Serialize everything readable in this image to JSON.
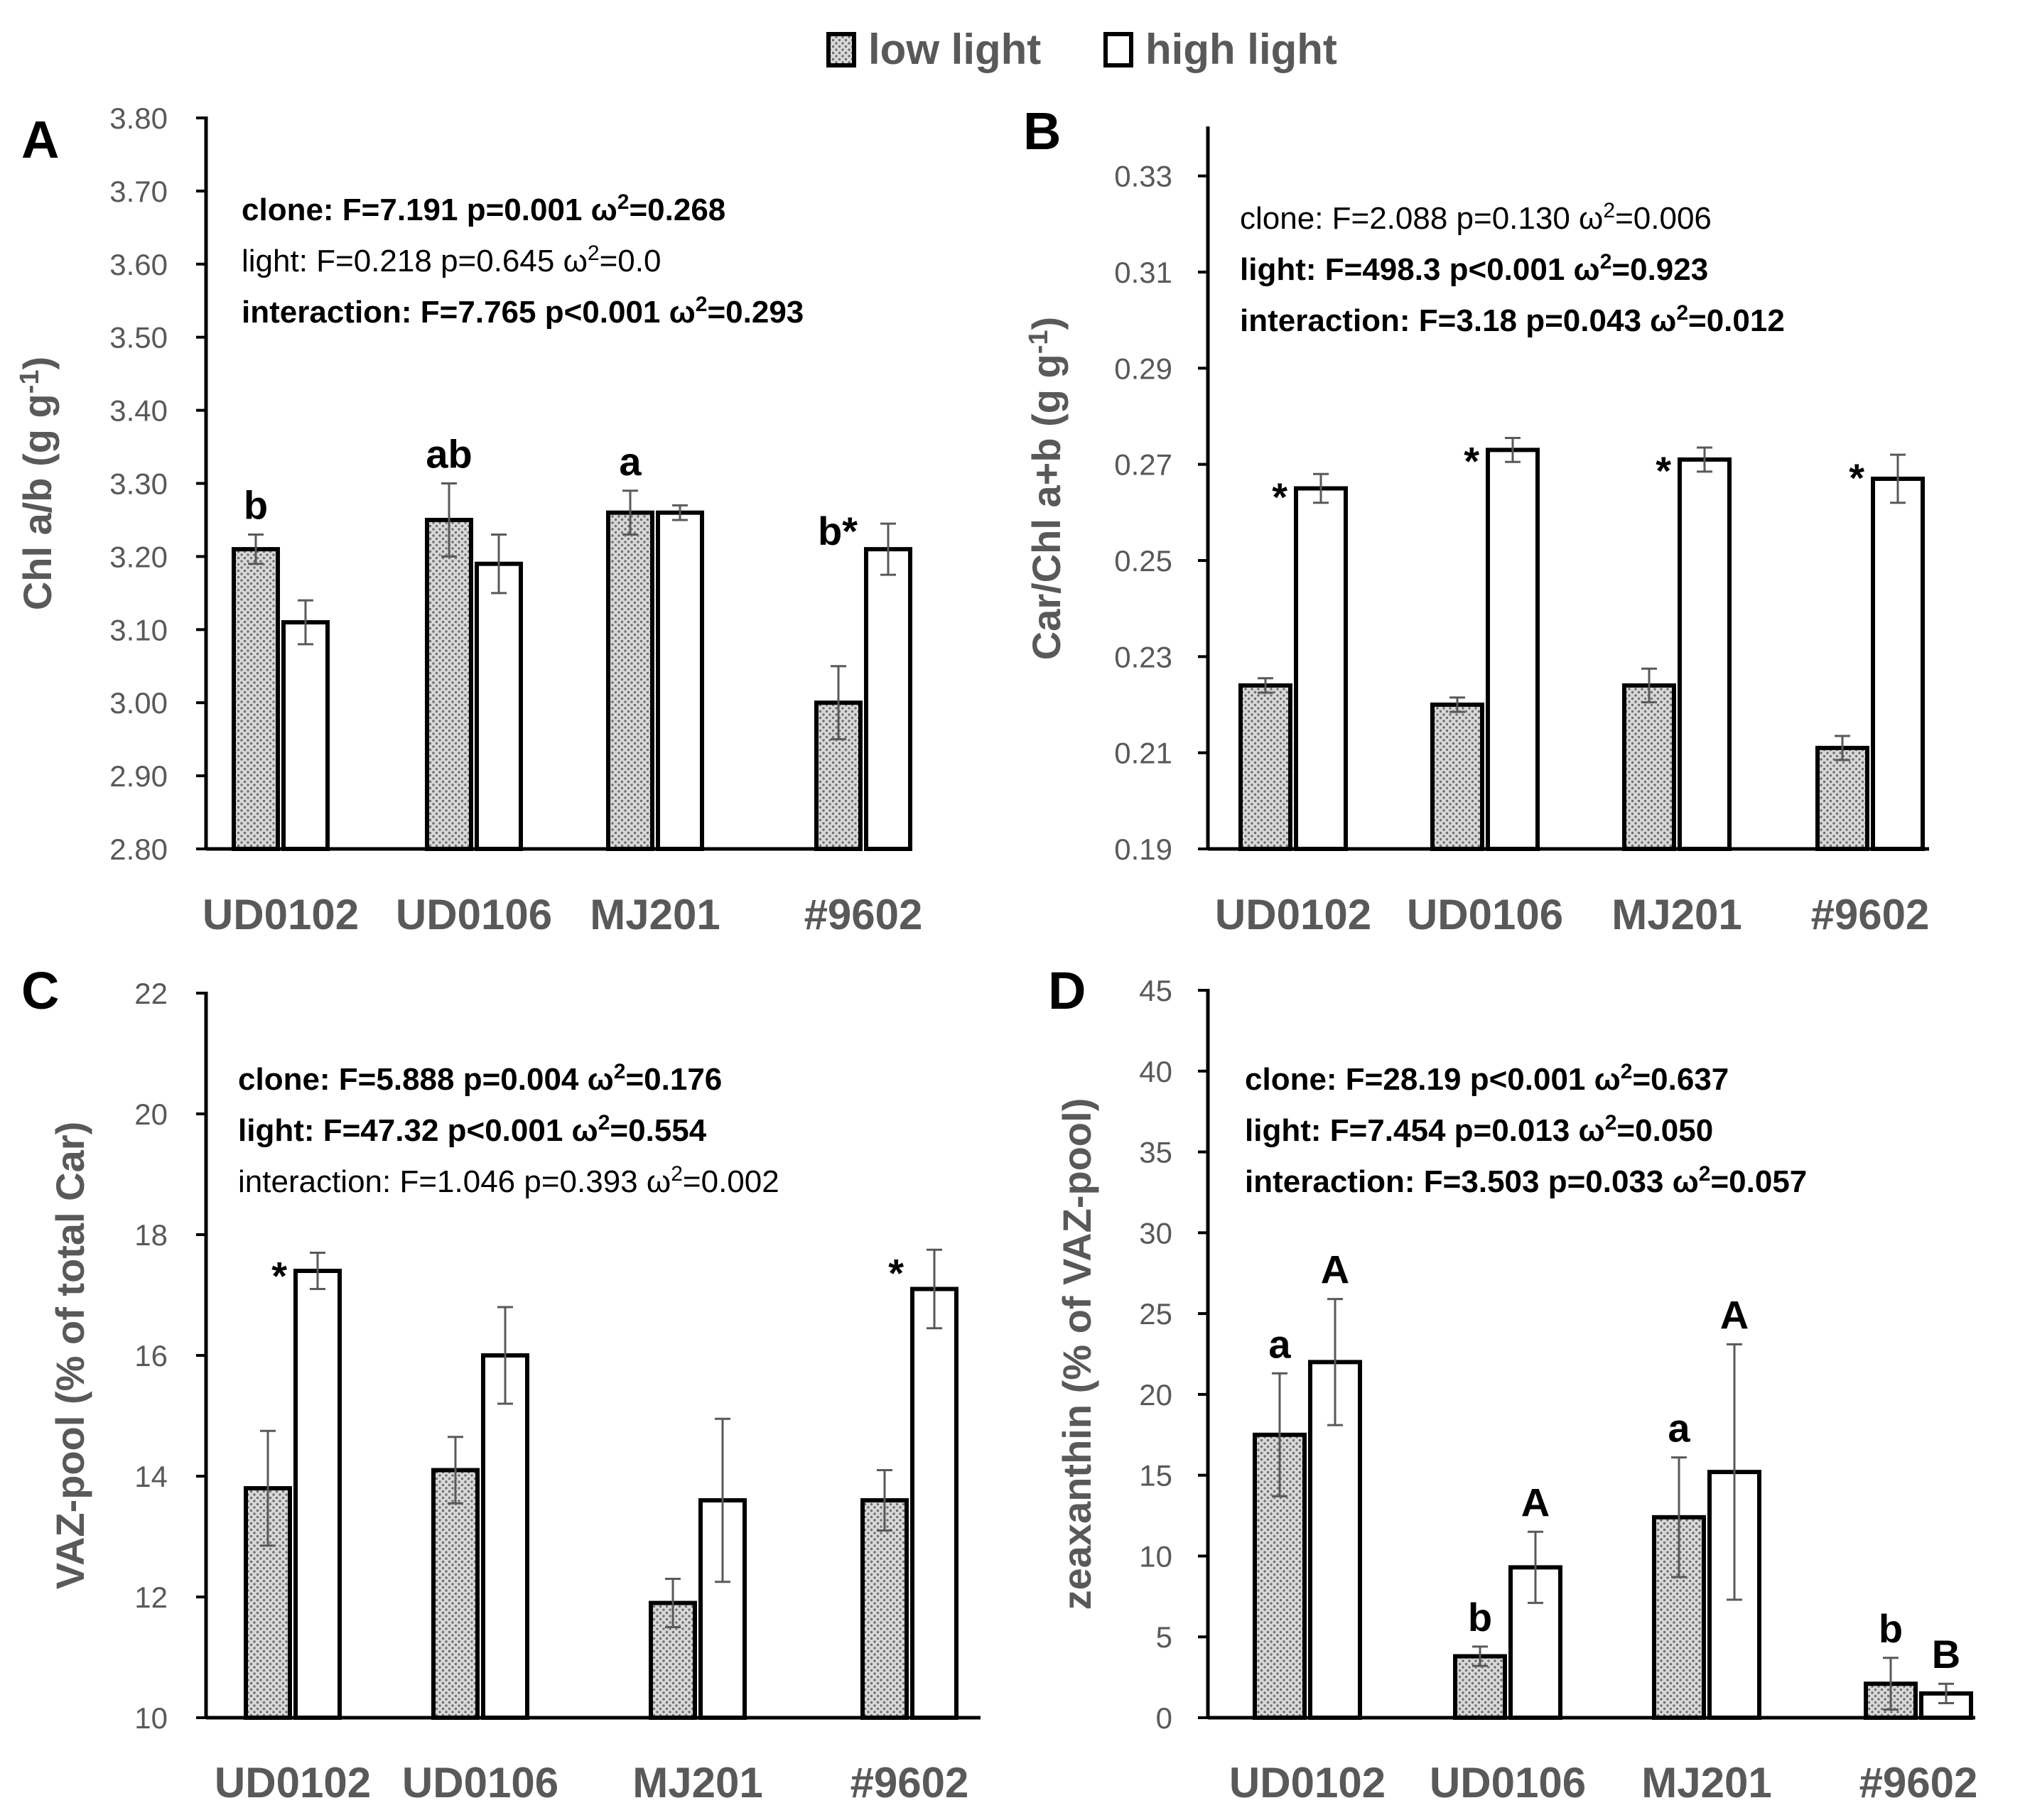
{
  "legend": {
    "low": "low light",
    "high": "high light"
  },
  "colors": {
    "axis": "#000000",
    "text": "#595959",
    "error": "#595959",
    "bar_edge": "#000000"
  },
  "chart_data": [
    {
      "panel": "A",
      "type": "bar",
      "ylabel": "Chl a/b (g g-1)",
      "ylabel_main": "Chl a/b (g g",
      "ylabel_sup": "-1",
      "ylabel_end": ")",
      "ylim": [
        2.8,
        3.8
      ],
      "ytick_step": 0.1,
      "ytick_decimals": 2,
      "categories": [
        "UD0102",
        "UD0106",
        "MJ201",
        "#9602"
      ],
      "series": [
        {
          "name": "low light",
          "values": [
            3.21,
            3.25,
            3.26,
            3.0
          ],
          "errors": [
            0.02,
            0.05,
            0.03,
            0.05
          ]
        },
        {
          "name": "high light",
          "values": [
            3.11,
            3.19,
            3.26,
            3.21
          ],
          "errors": [
            0.03,
            0.04,
            0.01,
            0.035
          ]
        }
      ],
      "annotations": [
        {
          "text": "b",
          "cat": 0,
          "series": 0
        },
        {
          "text": "ab",
          "cat": 1,
          "series": 0
        },
        {
          "text": "a",
          "cat": 2,
          "series": 0
        },
        {
          "text": "b*",
          "cat": 3,
          "series": 1,
          "side": "left"
        }
      ],
      "stats": [
        {
          "bold": true,
          "label": "clone:",
          "text": "F=7.191 p=0.001 ω",
          "sup": "2",
          "tail": "=0.268"
        },
        {
          "bold": false,
          "label": "light:",
          "text": "F=0.218 p=0.645 ω",
          "sup": "2",
          "tail": "=0.0"
        },
        {
          "bold": true,
          "label": "interaction:",
          "text": "F=7.765 p<0.001 ω",
          "sup": "2",
          "tail": "=0.293"
        }
      ]
    },
    {
      "panel": "B",
      "type": "bar",
      "ylabel": "Car/Chl a+b (g g-1)",
      "ylabel_main": "Car/Chl a+b (g g",
      "ylabel_sup": "-1",
      "ylabel_end": ")",
      "ylim": [
        0.19,
        0.34
      ],
      "ytick_values": [
        0.19,
        0.21,
        0.23,
        0.25,
        0.27,
        0.29,
        0.31,
        0.33
      ],
      "ytick_decimals": 2,
      "categories": [
        "UD0102",
        "UD0106",
        "MJ201",
        "#9602"
      ],
      "series": [
        {
          "name": "low light",
          "values": [
            0.224,
            0.22,
            0.224,
            0.211
          ],
          "errors": [
            0.0015,
            0.0015,
            0.0035,
            0.0025
          ]
        },
        {
          "name": "high light",
          "values": [
            0.265,
            0.273,
            0.271,
            0.267
          ],
          "errors": [
            0.003,
            0.0025,
            0.0025,
            0.005
          ]
        }
      ],
      "annotations": [
        {
          "text": "*",
          "cat": 0,
          "series": 1,
          "side": "left"
        },
        {
          "text": "*",
          "cat": 1,
          "series": 1,
          "side": "left"
        },
        {
          "text": "*",
          "cat": 2,
          "series": 1,
          "side": "left"
        },
        {
          "text": "*",
          "cat": 3,
          "series": 1,
          "side": "left"
        }
      ],
      "stats": [
        {
          "bold": false,
          "label": "clone:",
          "text": "F=2.088 p=0.130 ω",
          "sup": "2",
          "tail": "=0.006"
        },
        {
          "bold": true,
          "label": "light:",
          "text": "F=498.3 p<0.001 ω",
          "sup": "2",
          "tail": "=0.923"
        },
        {
          "bold": true,
          "label": "interaction:",
          "text": "F=3.18 p=0.043 ω",
          "sup": "2",
          "tail": "=0.012"
        }
      ]
    },
    {
      "panel": "C",
      "type": "bar",
      "ylabel": "VAZ-pool (% of total Car)",
      "ylabel_main": "VAZ-pool (% of total Car)",
      "ylabel_sup": "",
      "ylabel_end": "",
      "ylim": [
        10,
        22
      ],
      "ytick_step": 2,
      "ytick_decimals": 0,
      "categories": [
        "UD0102",
        "UD0106",
        "MJ201",
        "#9602"
      ],
      "series": [
        {
          "name": "low light",
          "values": [
            13.8,
            14.1,
            11.9,
            13.6
          ],
          "errors": [
            0.95,
            0.55,
            0.4,
            0.5
          ]
        },
        {
          "name": "high light",
          "values": [
            17.4,
            16.0,
            13.6,
            17.1
          ],
          "errors": [
            0.3,
            0.8,
            1.35,
            0.65
          ]
        }
      ],
      "annotations": [
        {
          "text": "*",
          "cat": 0,
          "series": 1,
          "side": "left"
        },
        {
          "text": "*",
          "cat": 3,
          "series": 1,
          "side": "left"
        }
      ],
      "stats": [
        {
          "bold": true,
          "label": "clone:",
          "text": "F=5.888 p=0.004 ω",
          "sup": "2",
          "tail": "=0.176"
        },
        {
          "bold": true,
          "label": "light:",
          "text": "F=47.32 p<0.001 ω",
          "sup": "2",
          "tail": "=0.554"
        },
        {
          "bold": false,
          "label": "interaction:",
          "text": "F=1.046 p=0.393 ω",
          "sup": "2",
          "tail": "=0.002"
        }
      ]
    },
    {
      "panel": "D",
      "type": "bar",
      "ylabel": "zeaxanthin (% of VAZ-pool)",
      "ylabel_main": "zeaxanthin (% of VAZ-pool)",
      "ylabel_sup": "",
      "ylabel_end": "",
      "ylim": [
        0,
        45
      ],
      "ytick_step": 5,
      "ytick_decimals": 0,
      "categories": [
        "UD0102",
        "UD0106",
        "MJ201",
        "#9602"
      ],
      "series": [
        {
          "name": "low light",
          "values": [
            17.5,
            3.8,
            12.4,
            2.1
          ],
          "errors": [
            3.8,
            0.6,
            3.7,
            1.6
          ]
        },
        {
          "name": "high light",
          "values": [
            22.0,
            9.3,
            15.2,
            1.5
          ],
          "errors": [
            3.9,
            2.2,
            7.9,
            0.6
          ]
        }
      ],
      "annotations": [
        {
          "text": "a",
          "cat": 0,
          "series": 0
        },
        {
          "text": "A",
          "cat": 0,
          "series": 1
        },
        {
          "text": "b",
          "cat": 1,
          "series": 0
        },
        {
          "text": "A",
          "cat": 1,
          "series": 1
        },
        {
          "text": "a",
          "cat": 2,
          "series": 0
        },
        {
          "text": "A",
          "cat": 2,
          "series": 1
        },
        {
          "text": "b",
          "cat": 3,
          "series": 0
        },
        {
          "text": "B",
          "cat": 3,
          "series": 1
        }
      ],
      "stats": [
        {
          "bold": true,
          "label": "clone:",
          "text": "F=28.19 p<0.001 ω",
          "sup": "2",
          "tail": "=0.637"
        },
        {
          "bold": true,
          "label": "light:",
          "text": "F=7.454 p=0.013 ω",
          "sup": "2",
          "tail": "=0.050"
        },
        {
          "bold": true,
          "label": "interaction:",
          "text": "F=3.503 p=0.033 ω",
          "sup": "2",
          "tail": "=0.057"
        }
      ]
    }
  ]
}
